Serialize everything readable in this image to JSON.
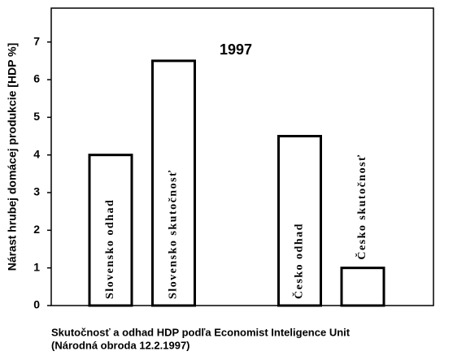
{
  "chart_data": {
    "type": "bar",
    "title": "1997",
    "ylabel": "Nárast hrubej domácej produkcie [HDP %]",
    "xlabel": "Skutočnosť a odhad HDP podľa Economist Inteligence Unit",
    "note": "(Národná obroda 12.2.1997)",
    "categories": [
      "Slovensko odhad",
      "Slovensko skutočnosť",
      null,
      "Česko odhad",
      "Česko skutočnosť"
    ],
    "values": [
      4,
      6.5,
      null,
      4.5,
      1
    ],
    "color": "#ffffff",
    "ylim": [
      0,
      7.9
    ],
    "yticks": [
      0,
      1,
      2,
      3,
      4,
      5,
      6,
      7
    ],
    "grid": false
  }
}
